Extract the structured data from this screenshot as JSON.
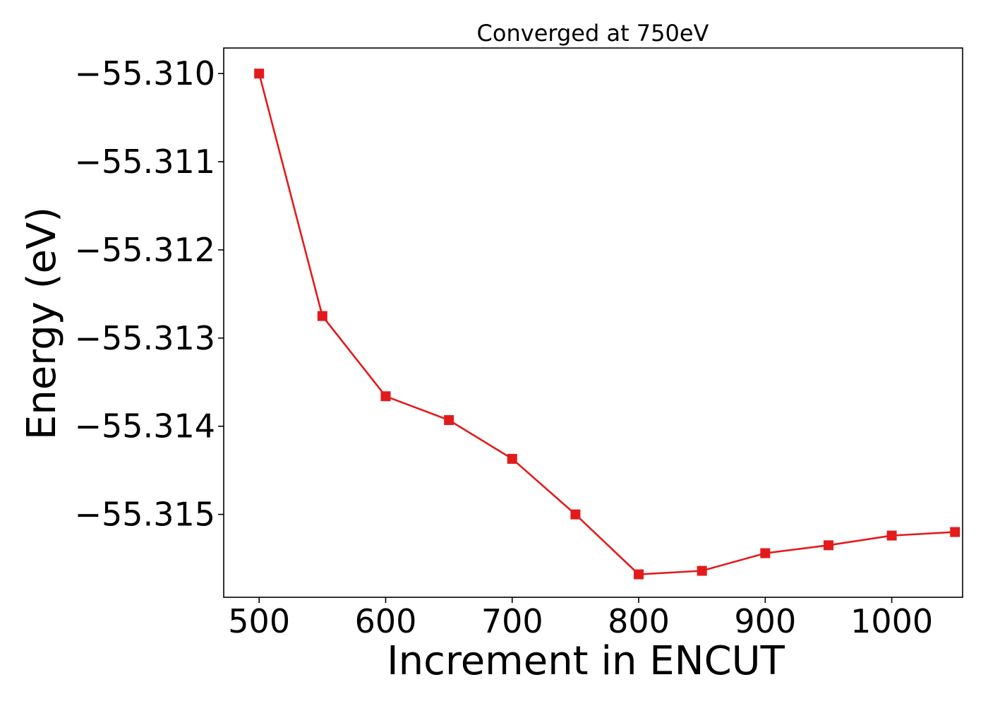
{
  "chart_data": {
    "type": "line",
    "title": "Converged at 750eV",
    "xlabel": "Increment in ENCUT",
    "ylabel": "Energy (eV)",
    "x": [
      500,
      550,
      600,
      650,
      700,
      750,
      800,
      850,
      900,
      950,
      1000,
      1050
    ],
    "series": [
      {
        "values": [
          -55.31,
          -55.31275,
          -55.31366,
          -55.31393,
          -55.31437,
          -55.315,
          -55.31568,
          -55.31564,
          -55.31544,
          -55.31535,
          -55.31524,
          -55.3152
        ],
        "color": "#e31a1c",
        "marker": "square"
      }
    ],
    "xlim": [
      472,
      1056
    ],
    "ylim": [
      -55.31594,
      -55.30971
    ],
    "xticks": [
      500,
      600,
      700,
      800,
      900,
      1000
    ],
    "xtick_labels": [
      "500",
      "600",
      "700",
      "800",
      "900",
      "1000"
    ],
    "yticks": [
      -55.31,
      -55.311,
      -55.312,
      -55.313,
      -55.314,
      -55.315
    ],
    "ytick_labels": [
      "−55.310",
      "−55.311",
      "−55.312",
      "−55.313",
      "−55.314",
      "−55.315"
    ],
    "grid": false,
    "legend": "none"
  }
}
